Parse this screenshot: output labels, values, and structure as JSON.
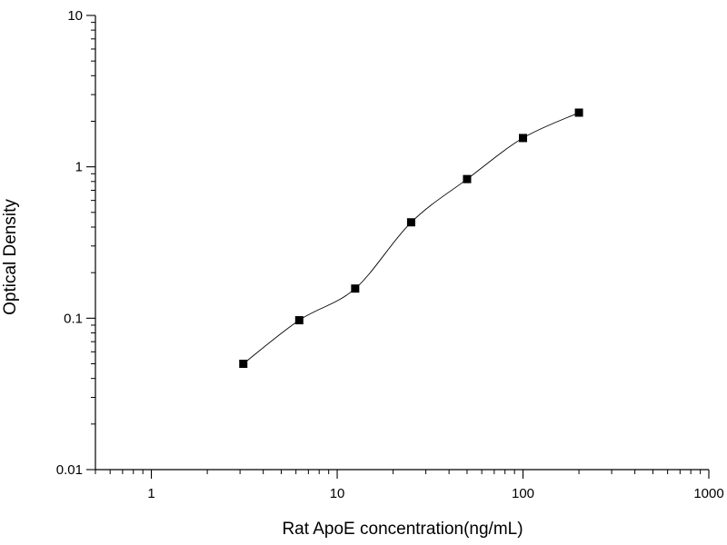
{
  "chart_data": {
    "type": "scatter",
    "title": "",
    "xlabel": "Rat ApoE concentration(ng/mL)",
    "ylabel": "Optical Density",
    "xscale": "log",
    "yscale": "log",
    "xlim": [
      0.5,
      1000
    ],
    "ylim": [
      0.01,
      10
    ],
    "grid": false,
    "legend": "none",
    "x_ticks": [
      {
        "value": 1,
        "label": "1"
      },
      {
        "value": 10,
        "label": "10"
      },
      {
        "value": 100,
        "label": "100"
      },
      {
        "value": 1000,
        "label": "1000"
      }
    ],
    "y_ticks": [
      {
        "value": 0.01,
        "label": "0.01"
      },
      {
        "value": 0.1,
        "label": "0.1"
      },
      {
        "value": 1,
        "label": "1"
      },
      {
        "value": 10,
        "label": "10"
      }
    ],
    "series": [
      {
        "marker": "square",
        "color": "#000000",
        "points": [
          {
            "x": 3.125,
            "y": 0.05
          },
          {
            "x": 6.25,
            "y": 0.097
          },
          {
            "x": 12.5,
            "y": 0.157
          },
          {
            "x": 25,
            "y": 0.43
          },
          {
            "x": 50,
            "y": 0.83
          },
          {
            "x": 100,
            "y": 1.55
          },
          {
            "x": 200,
            "y": 2.28
          }
        ],
        "fit_curve": true
      }
    ]
  }
}
